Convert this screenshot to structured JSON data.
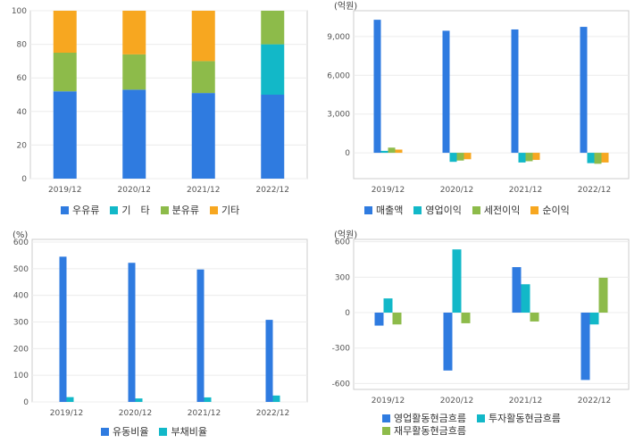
{
  "colors": {
    "blue": "#2f7be0",
    "cyan": "#12b8c8",
    "green": "#8dbb4a",
    "orange": "#f7a720"
  },
  "chart_data": [
    {
      "type": "bar",
      "stacked": true,
      "categories": [
        "2019/12",
        "2020/12",
        "2021/12",
        "2022/12"
      ],
      "ylim": [
        0,
        100
      ],
      "yticks": [
        0,
        20,
        40,
        60,
        80,
        100
      ],
      "unit_label": "",
      "series": [
        {
          "name": "우유류",
          "color": "#2f7be0",
          "values": [
            52,
            53,
            51,
            50
          ]
        },
        {
          "name": "기　타",
          "color": "#12b8c8",
          "values": [
            0,
            0,
            0,
            30
          ]
        },
        {
          "name": "분유류",
          "color": "#8dbb4a",
          "values": [
            23,
            21,
            19,
            20
          ]
        },
        {
          "name": "기타",
          "color": "#f7a720",
          "values": [
            25,
            26,
            30,
            0
          ]
        }
      ],
      "legend_position": "bottom",
      "grid": true
    },
    {
      "type": "bar",
      "categories": [
        "2019/12",
        "2020/12",
        "2021/12",
        "2022/12"
      ],
      "ylim": [
        -2000,
        11000
      ],
      "yticks": [
        0,
        3000,
        6000,
        9000
      ],
      "ytick_labels": [
        "0",
        "3,000",
        "6,000",
        "9,000"
      ],
      "unit_label": "(억원)",
      "series": [
        {
          "name": "매출액",
          "color": "#2f7be0",
          "values": [
            10300,
            9450,
            9550,
            9750
          ]
        },
        {
          "name": "영업이익",
          "color": "#12b8c8",
          "values": [
            150,
            -700,
            -750,
            -800
          ]
        },
        {
          "name": "세전이익",
          "color": "#8dbb4a",
          "values": [
            400,
            -600,
            -650,
            -850
          ]
        },
        {
          "name": "순이익",
          "color": "#f7a720",
          "values": [
            250,
            -500,
            -550,
            -750
          ]
        }
      ],
      "legend_position": "bottom",
      "grid": true
    },
    {
      "type": "bar",
      "categories": [
        "2019/12",
        "2020/12",
        "2021/12",
        "2022/12"
      ],
      "ylim": [
        0,
        610
      ],
      "yticks": [
        0,
        100,
        200,
        300,
        400,
        500,
        600
      ],
      "unit_label": "(%)",
      "series": [
        {
          "name": "유동비율",
          "color": "#2f7be0",
          "values": [
            545,
            522,
            497,
            308
          ]
        },
        {
          "name": "부채비율",
          "color": "#12b8c8",
          "values": [
            18,
            13,
            17,
            24
          ]
        }
      ],
      "legend_position": "bottom",
      "grid": true
    },
    {
      "type": "bar",
      "categories": [
        "2019/12",
        "2020/12",
        "2021/12",
        "2022/12"
      ],
      "ylim": [
        -650,
        620
      ],
      "yticks": [
        -600,
        -300,
        0,
        300,
        600
      ],
      "unit_label": "(억원)",
      "series": [
        {
          "name": "영업활동현금흐름",
          "color": "#2f7be0",
          "values": [
            -110,
            -490,
            385,
            -570
          ]
        },
        {
          "name": "투자활동현금흐름",
          "color": "#12b8c8",
          "values": [
            120,
            535,
            240,
            -100
          ]
        },
        {
          "name": "재무활동현금흐름",
          "color": "#8dbb4a",
          "values": [
            -100,
            -90,
            -75,
            295
          ]
        }
      ],
      "legend_position": "bottom",
      "grid": true
    }
  ]
}
